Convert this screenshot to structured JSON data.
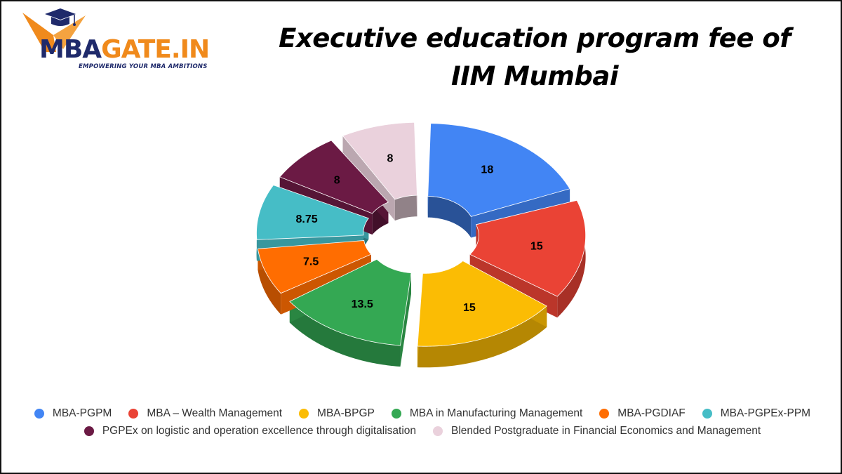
{
  "logo": {
    "text_part1": "MBA",
    "text_part2": "GATE.IN",
    "tagline": "EMPOWERING YOUR MBA AMBITIONS",
    "icon": "graduation-cap-icon",
    "colors": {
      "navy": "#1f2a6b",
      "orange": "#f08a1c"
    }
  },
  "chart_data": {
    "type": "pie",
    "style": "3d-exploded-donut",
    "title_lines": [
      "Executive education program fee of",
      "IIM Mumbai"
    ],
    "legend_placement": "bottom",
    "series": [
      {
        "name": "MBA-PGPM",
        "value": 18,
        "label": "18",
        "color": "#4285f4"
      },
      {
        "name": "MBA – Wealth Management",
        "value": 15,
        "label": "15",
        "color": "#ea4335"
      },
      {
        "name": "MBA-BPGP",
        "value": 15,
        "label": "15",
        "color": "#fbbc04"
      },
      {
        "name": "MBA in Manufacturing Management",
        "value": 13.5,
        "label": "13.5",
        "color": "#34a853"
      },
      {
        "name": "MBA-PGDIAF",
        "value": 7.5,
        "label": "7.5",
        "color": "#ff6d01"
      },
      {
        "name": "MBA-PGPEx-PPM",
        "value": 8.75,
        "label": "8.75",
        "color": "#46bdc6"
      },
      {
        "name": "PGPEx on logistic and operation excellence through digitalisation",
        "value": 8,
        "label": "8",
        "color": "#6b1a44"
      },
      {
        "name": "Blended Postgraduate in Financial Economics and Management",
        "value": 8,
        "label": "8",
        "color": "#ead1dc"
      }
    ]
  }
}
